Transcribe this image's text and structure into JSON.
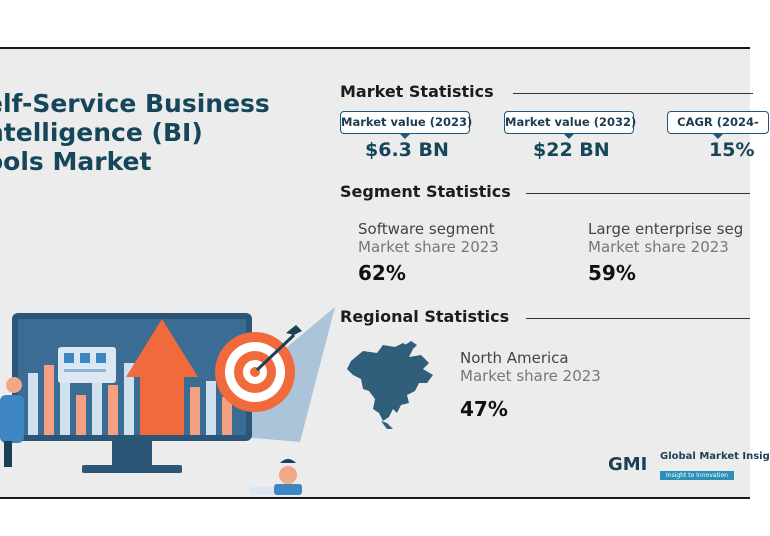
{
  "title": {
    "line1": "elf-Service Business",
    "line2": "ntelligence (BI)",
    "line3": "ools Market"
  },
  "market_statistics": {
    "heading": "Market Statistics",
    "items": [
      {
        "label": "Market value (2023)",
        "value": "$6.3 BN"
      },
      {
        "label": "Market value (2032)",
        "value": "$22 BN"
      },
      {
        "label": "CAGR (2024-",
        "value": "15%"
      }
    ]
  },
  "segment_statistics": {
    "heading": "Segment Statistics",
    "items": [
      {
        "name": "Software segment",
        "sub": "Market share 2023",
        "value": "62%"
      },
      {
        "name": "Large enterprise seg",
        "sub": "Market share 2023",
        "value": "59%"
      }
    ]
  },
  "regional_statistics": {
    "heading": "Regional Statistics",
    "region": "North America",
    "sub": "Market share 2023",
    "value": "47%"
  },
  "logo": {
    "mark": "GMI",
    "name": "Global Market Insig",
    "tagline": "Insight to Innovation"
  },
  "colors": {
    "title": "#16465a",
    "accent_orange": "#f06a3b",
    "accent_blue": "#3d86c2",
    "background": "#ececec"
  }
}
